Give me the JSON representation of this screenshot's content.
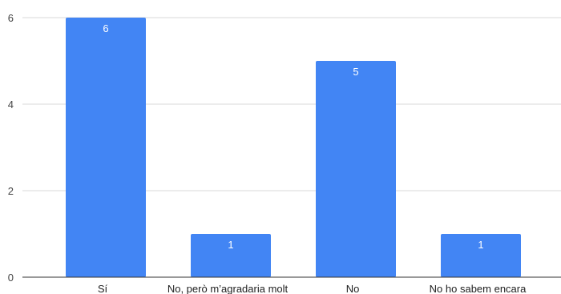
{
  "chart_data": {
    "type": "bar",
    "categories": [
      "Sí",
      "No, però m’agradaria molt",
      "No",
      "No ho sabem encara"
    ],
    "values": [
      6,
      1,
      5,
      1
    ],
    "title": "",
    "xlabel": "",
    "ylabel": "",
    "ylim": [
      0,
      6
    ],
    "yticks": [
      0,
      2,
      4,
      6
    ],
    "grid": true,
    "legend": "none",
    "bar_color": "#4285f4",
    "data_labels": true
  }
}
